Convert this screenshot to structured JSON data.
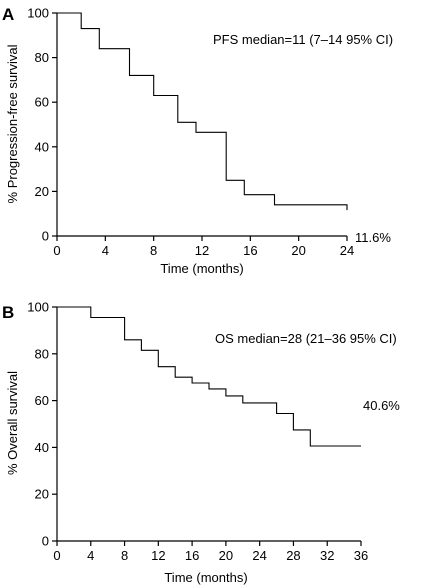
{
  "chart_data": [
    {
      "type": "line",
      "panel_label": "A",
      "xlabel": "Time (months)",
      "ylabel": "% Progression-free survival",
      "xlim": [
        0,
        24
      ],
      "ylim": [
        0,
        100
      ],
      "xticks": [
        0,
        4,
        8,
        12,
        16,
        20,
        24
      ],
      "yticks": [
        0,
        20,
        40,
        60,
        80,
        100
      ],
      "grid": false,
      "step": true,
      "series": [
        {
          "x": [
            0,
            2,
            2,
            3.5,
            3.5,
            6,
            6,
            8,
            8,
            10,
            10,
            11.5,
            11.5,
            14,
            14,
            15.5,
            15.5,
            18,
            18,
            24,
            24
          ],
          "y": [
            100,
            100,
            93,
            93,
            84,
            84,
            72,
            72,
            63,
            63,
            51,
            51,
            46.5,
            46.5,
            25,
            25,
            18.5,
            18.5,
            14,
            14,
            11.6
          ]
        }
      ],
      "annotations": {
        "median": "PFS median=11 (7–14 95% CI)",
        "end_value": "11.6%"
      }
    },
    {
      "type": "line",
      "panel_label": "B",
      "xlabel": "Time (months)",
      "ylabel": "% Overall survival",
      "xlim": [
        0,
        36
      ],
      "ylim": [
        0,
        100
      ],
      "xticks": [
        0,
        4,
        8,
        12,
        16,
        20,
        24,
        28,
        32,
        36
      ],
      "yticks": [
        0,
        20,
        40,
        60,
        80,
        100
      ],
      "grid": false,
      "step": true,
      "series": [
        {
          "x": [
            0,
            4,
            4,
            8,
            8,
            10,
            10,
            12,
            12,
            14,
            14,
            16,
            16,
            18,
            18,
            20,
            20,
            22,
            22,
            26,
            26,
            28,
            28,
            30,
            30,
            36
          ],
          "y": [
            100,
            100,
            95.5,
            95.5,
            86,
            86,
            81.5,
            81.5,
            74.5,
            74.5,
            70,
            70,
            67.5,
            67.5,
            65,
            65,
            62,
            62,
            59,
            59,
            54.5,
            54.5,
            47.5,
            47.5,
            40.6,
            40.6
          ]
        }
      ],
      "annotations": {
        "median": "OS median=28 (21–36 95% CI)",
        "end_value": "40.6%"
      }
    }
  ]
}
